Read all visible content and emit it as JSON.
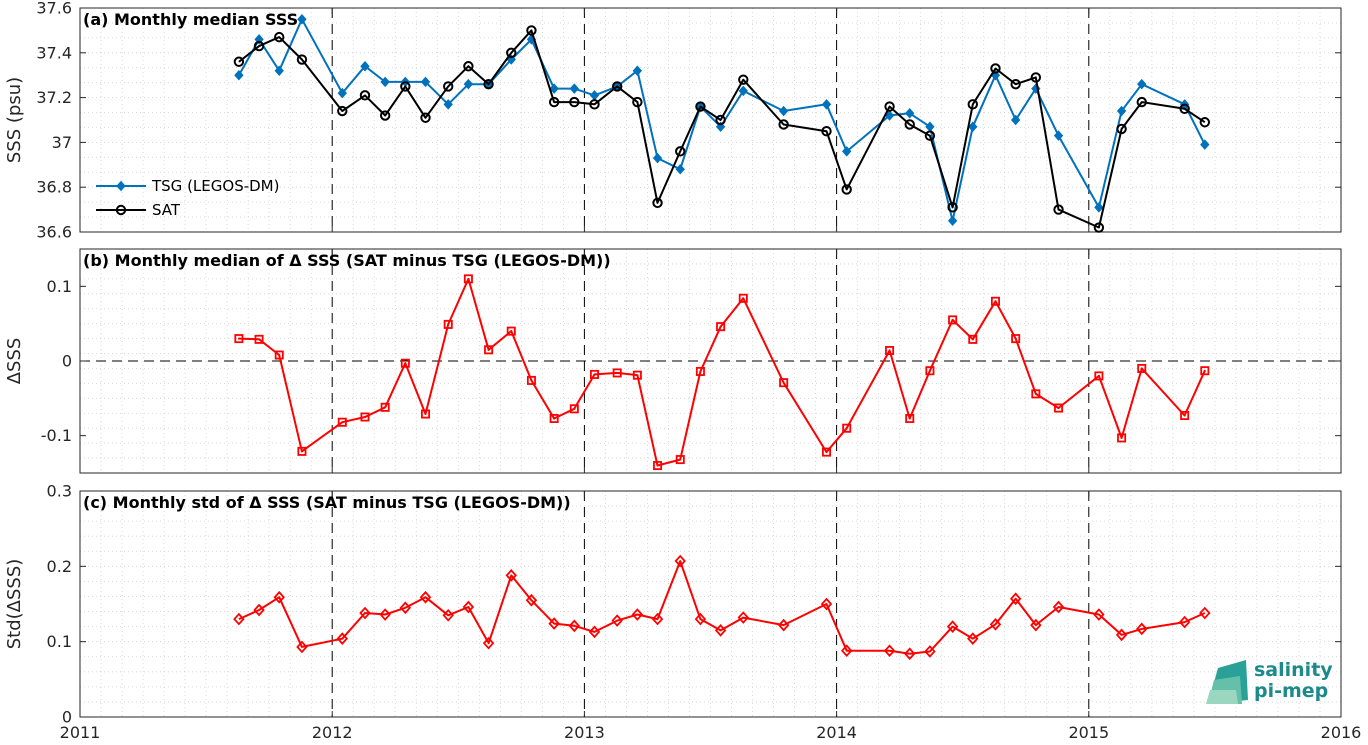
{
  "chart_data": [
    {
      "type": "line",
      "title": "(a) Monthly median SSS",
      "ylabel": "SSS (psu)",
      "ylim": [
        36.6,
        37.6
      ],
      "yticks": [
        36.6,
        36.8,
        37,
        37.2,
        37.4,
        37.6
      ],
      "ytick_labels": [
        "36.6",
        "36.8",
        "37",
        "37.2",
        "37.4",
        "37.6"
      ],
      "legend_position": "left",
      "series": [
        {
          "name": "TSG (LEGOS-DM)",
          "color": "#0072BD",
          "marker": "diamond-filled",
          "x": [
            2011.63,
            2011.71,
            2011.79,
            2011.88,
            2012.04,
            2012.13,
            2012.21,
            2012.29,
            2012.37,
            2012.46,
            2012.54,
            2012.62,
            2012.71,
            2012.79,
            2012.88,
            2012.96,
            2013.04,
            2013.13,
            2013.21,
            2013.29,
            2013.38,
            2013.46,
            2013.54,
            2013.63,
            2013.79,
            2013.96,
            2014.04,
            2014.21,
            2014.29,
            2014.37,
            2014.46,
            2014.54,
            2014.63,
            2014.71,
            2014.79,
            2014.88,
            2015.04,
            2015.13,
            2015.21,
            2015.38,
            2015.46
          ],
          "values": [
            37.3,
            37.46,
            37.32,
            37.55,
            37.22,
            37.34,
            37.27,
            37.27,
            37.27,
            37.17,
            37.26,
            37.26,
            37.37,
            37.46,
            37.24,
            37.24,
            37.21,
            37.25,
            37.32,
            36.93,
            36.88,
            37.16,
            37.07,
            37.23,
            37.14,
            37.17,
            36.96,
            37.12,
            37.13,
            37.07,
            36.65,
            37.07,
            37.3,
            37.1,
            37.24,
            37.03,
            36.71,
            37.14,
            37.26,
            37.17,
            36.99
          ]
        },
        {
          "name": "SAT",
          "color": "#000000",
          "marker": "circle-open",
          "x": [
            2011.63,
            2011.71,
            2011.79,
            2011.88,
            2012.04,
            2012.13,
            2012.21,
            2012.29,
            2012.37,
            2012.46,
            2012.54,
            2012.62,
            2012.71,
            2012.79,
            2012.88,
            2012.96,
            2013.04,
            2013.13,
            2013.21,
            2013.29,
            2013.38,
            2013.46,
            2013.54,
            2013.63,
            2013.79,
            2013.96,
            2014.04,
            2014.21,
            2014.29,
            2014.37,
            2014.46,
            2014.54,
            2014.63,
            2014.71,
            2014.79,
            2014.88,
            2015.04,
            2015.13,
            2015.21,
            2015.38,
            2015.46
          ],
          "values": [
            37.36,
            37.43,
            37.47,
            37.37,
            37.14,
            37.21,
            37.12,
            37.25,
            37.11,
            37.25,
            37.34,
            37.26,
            37.4,
            37.5,
            37.18,
            37.18,
            37.17,
            37.25,
            37.18,
            36.73,
            36.96,
            37.16,
            37.1,
            37.28,
            37.08,
            37.05,
            36.79,
            37.16,
            37.08,
            37.03,
            36.71,
            37.17,
            37.33,
            37.26,
            37.29,
            36.7,
            36.62,
            37.06,
            37.18,
            37.15,
            37.09
          ]
        }
      ]
    },
    {
      "type": "line",
      "title": "(b) Monthly median of Δ SSS (SAT minus TSG (LEGOS-DM))",
      "ylabel": "ΔSSS",
      "ylim": [
        -0.15,
        0.15
      ],
      "yticks": [
        -0.1,
        0,
        0.1
      ],
      "ytick_labels": [
        "-0.1",
        "0",
        "0.1"
      ],
      "zero_line": true,
      "series": [
        {
          "color": "#FF0000",
          "marker": "square-open",
          "x": [
            2011.63,
            2011.71,
            2011.79,
            2011.88,
            2012.04,
            2012.13,
            2012.21,
            2012.29,
            2012.37,
            2012.46,
            2012.54,
            2012.62,
            2012.71,
            2012.79,
            2012.88,
            2012.96,
            2013.04,
            2013.13,
            2013.21,
            2013.29,
            2013.38,
            2013.46,
            2013.54,
            2013.63,
            2013.79,
            2013.96,
            2014.04,
            2014.21,
            2014.29,
            2014.37,
            2014.46,
            2014.54,
            2014.63,
            2014.71,
            2014.79,
            2014.88,
            2015.04,
            2015.13,
            2015.21,
            2015.38,
            2015.46
          ],
          "values": [
            0.03,
            0.029,
            0.008,
            -0.121,
            -0.082,
            -0.075,
            -0.062,
            -0.003,
            -0.071,
            0.049,
            0.11,
            0.015,
            0.04,
            -0.026,
            -0.077,
            -0.064,
            -0.018,
            -0.016,
            -0.019,
            -0.14,
            -0.132,
            -0.014,
            0.046,
            0.084,
            -0.029,
            -0.122,
            -0.09,
            0.014,
            -0.077,
            -0.013,
            0.055,
            0.029,
            0.08,
            0.03,
            -0.044,
            -0.063,
            -0.02,
            -0.103,
            -0.01,
            -0.073,
            -0.013
          ]
        }
      ]
    },
    {
      "type": "line",
      "title": "(c) Monthly std of Δ SSS (SAT minus TSG (LEGOS-DM))",
      "ylabel": "Std(ΔSSS)",
      "ylim": [
        0,
        0.3
      ],
      "yticks": [
        0,
        0.1,
        0.2,
        0.3
      ],
      "ytick_labels": [
        "0",
        "0.1",
        "0.2",
        "0.3"
      ],
      "xlim": [
        2011,
        2016
      ],
      "xticks": [
        2011,
        2012,
        2013,
        2014,
        2015,
        2016
      ],
      "xtick_labels": [
        "2011",
        "2012",
        "2013",
        "2014",
        "2015",
        "2016"
      ],
      "series": [
        {
          "color": "#FF0000",
          "marker": "diamond-open",
          "x": [
            2011.63,
            2011.71,
            2011.79,
            2011.88,
            2012.04,
            2012.13,
            2012.21,
            2012.29,
            2012.37,
            2012.46,
            2012.54,
            2012.62,
            2012.71,
            2012.79,
            2012.88,
            2012.96,
            2013.04,
            2013.13,
            2013.21,
            2013.29,
            2013.38,
            2013.46,
            2013.54,
            2013.63,
            2013.79,
            2013.96,
            2014.04,
            2014.21,
            2014.29,
            2014.37,
            2014.46,
            2014.54,
            2014.63,
            2014.71,
            2014.79,
            2014.88,
            2015.04,
            2015.13,
            2015.21,
            2015.38,
            2015.46
          ],
          "values": [
            0.13,
            0.142,
            0.159,
            0.093,
            0.104,
            0.138,
            0.136,
            0.145,
            0.159,
            0.135,
            0.146,
            0.098,
            0.188,
            0.155,
            0.124,
            0.121,
            0.113,
            0.128,
            0.136,
            0.13,
            0.207,
            0.13,
            0.115,
            0.132,
            0.122,
            0.15,
            0.088,
            0.088,
            0.084,
            0.087,
            0.12,
            0.104,
            0.123,
            0.157,
            0.122,
            0.146,
            0.136,
            0.109,
            0.117,
            0.126,
            0.138
          ]
        }
      ]
    }
  ],
  "logo": {
    "line1": "salinity",
    "line2": "pi-mep",
    "colors": [
      "#2aa198",
      "#64c0a8",
      "#9ad6c0",
      "#c8ebd8"
    ]
  }
}
